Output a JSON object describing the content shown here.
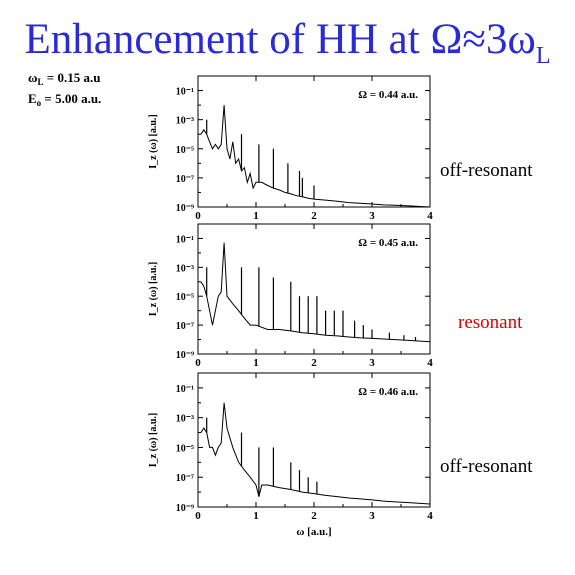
{
  "title": {
    "main": "Enhancement of HH at Ω≈3ω",
    "sub": "L"
  },
  "parameters": [
    {
      "symbol": "ω",
      "sub": "L",
      "text": " = 0.15 a.u"
    },
    {
      "symbol": "E",
      "sub": "o",
      "text": " = 5.00 a.u."
    }
  ],
  "colors": {
    "title": "#2b2bd6",
    "resonant": "#e00000",
    "text": "#000000"
  },
  "side_labels": [
    "off-resonant",
    "resonant",
    "off-resonant"
  ],
  "chart_data": [
    {
      "type": "line",
      "title": "",
      "annotation": "Ω = 0.44 a.u.",
      "xlabel": "",
      "ylabel": "I_z (ω) [a.u.]",
      "yscale": "log",
      "xlim": [
        0,
        4
      ],
      "ylim": [
        1e-09,
        1
      ],
      "xticks": [
        "0",
        "1",
        "2",
        "3",
        "4"
      ],
      "yticks": [
        "10⁻⁹",
        "10⁻⁷",
        "10⁻⁵",
        "10⁻³",
        "10⁻¹"
      ],
      "series": [
        {
          "x": [
            0.05,
            0.1,
            0.15,
            0.2,
            0.25,
            0.3,
            0.35,
            0.4,
            0.45,
            0.5,
            0.55,
            0.6,
            0.65,
            0.7,
            0.75,
            0.8,
            0.85,
            0.9,
            0.95,
            1.0,
            1.1,
            1.2,
            1.3,
            1.4,
            1.5,
            1.6,
            1.7,
            1.8,
            1.9,
            2.0,
            2.2,
            2.4,
            2.6,
            2.8,
            3.0,
            3.2,
            3.4,
            3.6,
            3.8,
            4.0
          ],
          "y": [
            0.0001,
            0.0002,
            0.0001,
            3e-05,
            1e-05,
            2e-05,
            1e-05,
            2e-05,
            0.01,
            1e-05,
            2e-06,
            3e-05,
            1e-06,
            2e-06,
            3e-07,
            5e-07,
            5e-08,
            2e-07,
            2e-08,
            5e-08,
            5e-08,
            3e-08,
            2e-08,
            1.5e-08,
            1e-08,
            8e-09,
            6e-09,
            5e-09,
            4e-09,
            3.5e-09,
            3e-09,
            2.5e-09,
            2e-09,
            1.8e-09,
            1.6e-09,
            1.4e-09,
            1.3e-09,
            1.2e-09,
            1.1e-09,
            1e-09
          ]
        }
      ],
      "peaks": [
        {
          "x": 0.15,
          "y": 0.001
        },
        {
          "x": 0.45,
          "y": 0.01
        },
        {
          "x": 0.75,
          "y": 0.0001
        },
        {
          "x": 1.05,
          "y": 2e-05
        },
        {
          "x": 1.3,
          "y": 1e-05
        },
        {
          "x": 1.55,
          "y": 1e-06
        },
        {
          "x": 1.75,
          "y": 3e-07
        },
        {
          "x": 1.8,
          "y": 1e-07
        },
        {
          "x": 2.0,
          "y": 3e-08
        }
      ]
    },
    {
      "type": "line",
      "title": "",
      "annotation": "Ω = 0.45 a.u.",
      "xlabel": "",
      "ylabel": "I_z (ω) [a.u.]",
      "yscale": "log",
      "xlim": [
        0,
        4
      ],
      "ylim": [
        1e-09,
        1
      ],
      "xticks": [
        "0",
        "1",
        "2",
        "3",
        "4"
      ],
      "yticks": [
        "10⁻⁹",
        "10⁻⁷",
        "10⁻⁵",
        "10⁻³",
        "10⁻¹"
      ],
      "series": [
        {
          "x": [
            0.05,
            0.1,
            0.15,
            0.2,
            0.25,
            0.3,
            0.35,
            0.4,
            0.45,
            0.5,
            0.6,
            0.7,
            0.8,
            0.9,
            1.0,
            1.2,
            1.4,
            1.6,
            1.8,
            2.0,
            2.2,
            2.4,
            2.6,
            2.8,
            3.0,
            3.2,
            3.4,
            3.6,
            3.8,
            4.0
          ],
          "y": [
            0.0001,
            5e-05,
            1e-05,
            1e-06,
            1e-07,
            1e-06,
            1e-05,
            2e-05,
            0.05,
            1e-05,
            3e-06,
            1e-06,
            3e-07,
            1e-07,
            1e-07,
            5e-08,
            5e-08,
            4e-08,
            3e-08,
            2.5e-08,
            2e-08,
            1.8e-08,
            1.5e-08,
            1.3e-08,
            1.2e-08,
            1.1e-08,
            1e-08,
            9e-09,
            8e-09,
            7e-09
          ]
        }
      ],
      "peaks": [
        {
          "x": 0.15,
          "y": 0.001
        },
        {
          "x": 0.45,
          "y": 0.05
        },
        {
          "x": 0.75,
          "y": 0.001
        },
        {
          "x": 1.05,
          "y": 0.001
        },
        {
          "x": 1.3,
          "y": 0.0002
        },
        {
          "x": 1.6,
          "y": 0.0001
        },
        {
          "x": 1.75,
          "y": 1e-05
        },
        {
          "x": 1.9,
          "y": 1e-05
        },
        {
          "x": 2.05,
          "y": 1e-05
        },
        {
          "x": 2.2,
          "y": 1e-06
        },
        {
          "x": 2.35,
          "y": 1e-06
        },
        {
          "x": 2.5,
          "y": 1e-06
        },
        {
          "x": 2.7,
          "y": 2e-07
        },
        {
          "x": 2.85,
          "y": 1e-07
        },
        {
          "x": 3.0,
          "y": 5e-08
        },
        {
          "x": 3.3,
          "y": 3e-08
        },
        {
          "x": 3.55,
          "y": 2e-08
        },
        {
          "x": 3.75,
          "y": 1.5e-08
        }
      ]
    },
    {
      "type": "line",
      "title": "",
      "annotation": "Ω = 0.46 a.u.",
      "xlabel": "ω [a.u.]",
      "ylabel": "I_z (ω) [a.u.]",
      "yscale": "log",
      "xlim": [
        0,
        4
      ],
      "ylim": [
        1e-09,
        1
      ],
      "xticks": [
        "0",
        "1",
        "2",
        "3",
        "4"
      ],
      "yticks": [
        "10⁻⁹",
        "10⁻⁷",
        "10⁻⁵",
        "10⁻³",
        "10⁻¹"
      ],
      "series": [
        {
          "x": [
            0.05,
            0.1,
            0.15,
            0.2,
            0.25,
            0.3,
            0.35,
            0.4,
            0.45,
            0.5,
            0.6,
            0.7,
            0.8,
            0.9,
            1.0,
            1.05,
            1.1,
            1.2,
            1.4,
            1.6,
            1.8,
            2.0,
            2.2,
            2.4,
            2.6,
            2.8,
            3.0,
            3.2,
            3.4,
            3.6,
            3.8,
            4.0
          ],
          "y": [
            0.0001,
            0.0002,
            0.0001,
            1e-05,
            1e-05,
            3e-06,
            1e-05,
            2e-05,
            0.01,
            0.0002,
            1e-05,
            1e-06,
            3e-07,
            1e-07,
            3e-08,
            5e-09,
            3e-08,
            3e-08,
            2e-08,
            1.5e-08,
            1e-08,
            8e-09,
            6e-09,
            5e-09,
            4e-09,
            3.5e-09,
            3e-09,
            2.5e-09,
            2.2e-09,
            2e-09,
            1.8e-09,
            1.6e-09
          ]
        }
      ],
      "peaks": [
        {
          "x": 0.15,
          "y": 0.001
        },
        {
          "x": 0.45,
          "y": 0.01
        },
        {
          "x": 0.75,
          "y": 0.0001
        },
        {
          "x": 1.05,
          "y": 1e-05
        },
        {
          "x": 1.3,
          "y": 1e-05
        },
        {
          "x": 1.6,
          "y": 1e-06
        },
        {
          "x": 1.75,
          "y": 3e-07
        },
        {
          "x": 1.9,
          "y": 1e-07
        },
        {
          "x": 2.05,
          "y": 5e-08
        }
      ]
    }
  ]
}
